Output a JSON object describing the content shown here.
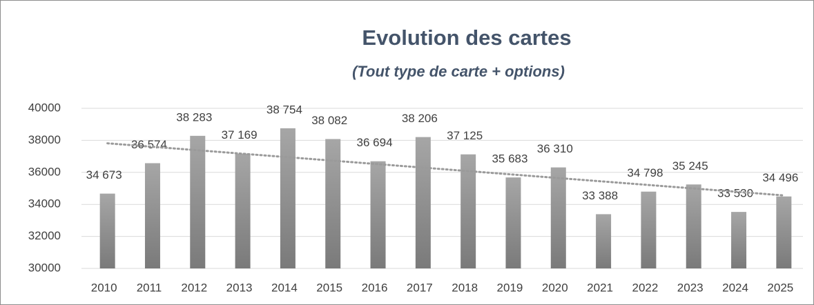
{
  "chart_data": {
    "type": "bar",
    "title": "Evolution des cartes",
    "subtitle": "(Tout type de carte + options)",
    "categories": [
      "2010",
      "2011",
      "2012",
      "2013",
      "2014",
      "2015",
      "2016",
      "2017",
      "2018",
      "2019",
      "2020",
      "2021",
      "2022",
      "2023",
      "2024",
      "2025"
    ],
    "values": [
      34673,
      36574,
      38283,
      37169,
      38754,
      38082,
      36694,
      38206,
      37125,
      35683,
      36310,
      33388,
      34798,
      35245,
      33530,
      34496
    ],
    "value_labels": [
      "34 673",
      "36 574",
      "38 283",
      "37 169",
      "38 754",
      "38 082",
      "36 694",
      "38 206",
      "37 125",
      "35 683",
      "36 310",
      "33 388",
      "34 798",
      "35 245",
      "33 530",
      "34 496"
    ],
    "color": "#8c8c8c",
    "ylim": [
      30000,
      40000
    ],
    "yticks": [
      30000,
      32000,
      34000,
      36000,
      38000,
      40000
    ],
    "grid": true,
    "trendline": "linear"
  }
}
